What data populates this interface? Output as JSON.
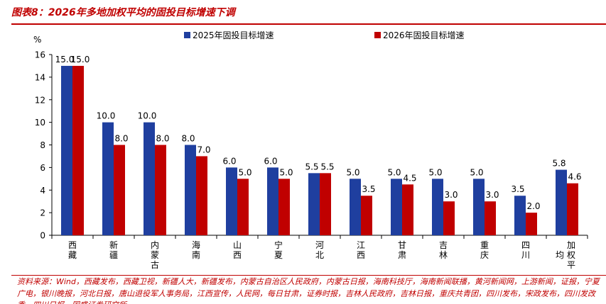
{
  "header": {
    "title": "图表8：2026年多地加权平均的固投目标增速下调"
  },
  "source": {
    "text": "资料来源：Wind，西藏发布，西藏卫视，新疆人大，新疆发布，内蒙古自治区人民政府，内蒙古日报，海南科技厅，海南新闻联播，黄河新闻网，上游新闻，证报，宁夏广电，银川晚报，河北日报，唐山退役军人事务局，江西宣传，人民网，每日甘肃，证券时报，吉林人民政府，吉林日报，重庆共青团，四川发布，宋政发布，四川发改委，四川日报，国盛证券研究所"
  },
  "colors": {
    "series1": "#1f3f9f",
    "series2": "#c00000",
    "accent": "#c00000"
  },
  "chart_data": {
    "type": "bar",
    "title": "图表8：2026年多地加权平均的固投目标增速下调",
    "ylabel": "%",
    "xlabel": "",
    "ylim": [
      0,
      16
    ],
    "yticks": [
      "0",
      "2",
      "4",
      "6",
      "8",
      "10",
      "12",
      "14",
      "16"
    ],
    "grid": false,
    "legend_position": "top",
    "categories": [
      "西藏",
      "新疆",
      "内蒙古",
      "海南",
      "山西",
      "宁夏",
      "河北",
      "江西",
      "甘肃",
      "吉林",
      "重庆",
      "四川",
      "加权平均"
    ],
    "category_labels": [
      [
        "西",
        "藏"
      ],
      [
        "新",
        "疆"
      ],
      [
        "内",
        "蒙",
        "古"
      ],
      [
        "海",
        "南"
      ],
      [
        "山",
        "西"
      ],
      [
        "宁",
        "夏"
      ],
      [
        "河",
        "北"
      ],
      [
        "江",
        "西"
      ],
      [
        "甘",
        "肃"
      ],
      [
        "吉",
        "林"
      ],
      [
        "重",
        "庆"
      ],
      [
        "四",
        "川"
      ],
      [
        "加",
        "权",
        "平",
        "均"
      ]
    ],
    "series": [
      {
        "name": "2025年固投目标增速",
        "values": [
          15.0,
          10.0,
          10.0,
          8.0,
          6.0,
          6.0,
          5.5,
          5.0,
          5.0,
          5.0,
          5.0,
          3.5,
          5.8
        ],
        "labels": [
          "15.0",
          "10.0",
          "10.0",
          "8.0",
          "6.0",
          "6.0",
          "5.5",
          "5.0",
          "5.0",
          "5.0",
          "5.0",
          "3.5",
          "5.8"
        ]
      },
      {
        "name": "2026年固投目标增速",
        "values": [
          15.0,
          8.0,
          8.0,
          7.0,
          5.0,
          5.0,
          5.5,
          3.5,
          4.5,
          3.0,
          3.0,
          2.0,
          4.6
        ],
        "labels": [
          "15.0",
          "8.0",
          "8.0",
          "7.0",
          "5.0",
          "5.0",
          "5.5",
          "3.5",
          "4.5",
          "3.0",
          "3.0",
          "2.0",
          "4.6"
        ]
      }
    ]
  }
}
